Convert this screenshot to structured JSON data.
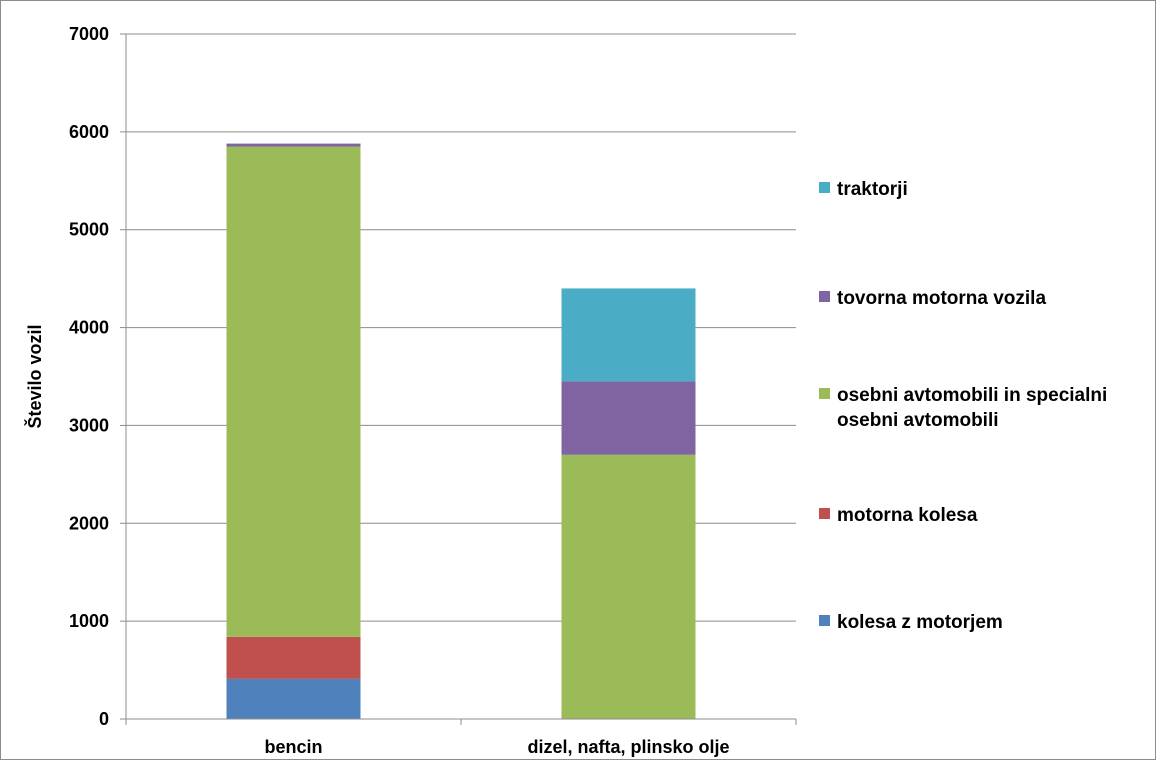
{
  "chart_data": {
    "type": "bar",
    "stacked": true,
    "categories": [
      "bencin",
      "dizel, nafta, plinsko olje"
    ],
    "series": [
      {
        "name": "kolesa z motorjem",
        "values": [
          410,
          0
        ],
        "color": "#4f81bd"
      },
      {
        "name": "motorna kolesa",
        "values": [
          430,
          0
        ],
        "color": "#c0504d"
      },
      {
        "name": "osebni avtomobili in specialni osebni avtomobili",
        "legend_lines": [
          "osebni avtomobili in specialni",
          "osebni avtomobili"
        ],
        "values": [
          5010,
          2700
        ],
        "color": "#9bbb59"
      },
      {
        "name": "tovorna motorna vozila",
        "values": [
          30,
          750
        ],
        "color": "#8064a2"
      },
      {
        "name": "traktorji",
        "values": [
          0,
          950
        ],
        "color": "#4bacc6"
      }
    ],
    "title": "",
    "xlabel": "",
    "ylabel": "Število vozil",
    "ylim": [
      0,
      7000
    ],
    "yticks": [
      0,
      1000,
      2000,
      3000,
      4000,
      5000,
      6000,
      7000
    ],
    "grid": true,
    "legend_position": "right"
  }
}
